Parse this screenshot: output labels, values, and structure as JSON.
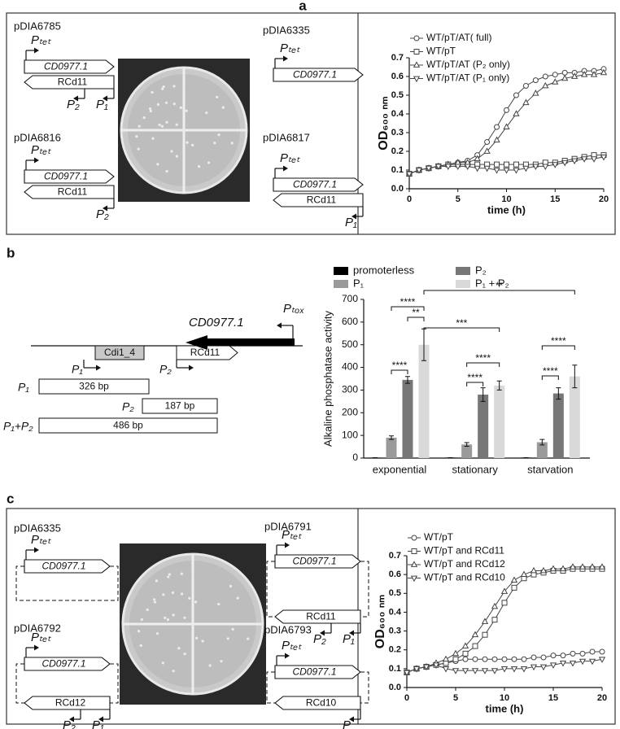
{
  "panel_labels": [
    "a",
    "b",
    "c"
  ],
  "diagram_a": [
    {
      "name": "pDIA6785",
      "ptet": "Pₜₑₜ",
      "toxin": "CD0977.1",
      "antitoxin": "RCd11",
      "promoters": [
        "P₂",
        "P₁"
      ]
    },
    {
      "name": "pDIA6335",
      "ptet": "Pₜₑₜ",
      "toxin": "CD0977.1"
    },
    {
      "name": "pDIA6816",
      "ptet": "Pₜₑₜ",
      "toxin": "CD0977.1",
      "antitoxin": "RCd11",
      "promoters": [
        "P₂"
      ]
    },
    {
      "name": "pDIA6817",
      "ptet": "Pₜₑₜ",
      "toxin": "CD0977.1",
      "antitoxin": "RCd11",
      "promoters": [
        "P₁"
      ]
    }
  ],
  "diagram_b": {
    "ptox": "Pₜₒₓ",
    "toxin": "CD0977.1",
    "cdi": "Cdi1_4",
    "antitoxin": "RCd11",
    "promoters": [
      "P₁",
      "P₂"
    ],
    "fragments": [
      {
        "name": "P₁",
        "size": "326 bp"
      },
      {
        "name": "P₂",
        "size": "187 bp"
      },
      {
        "name": "P₁+P₂",
        "size": "486 bp"
      }
    ]
  },
  "diagram_c": [
    {
      "name": "pDIA6335",
      "ptet": "Pₜₑₜ",
      "toxin": "CD0977.1"
    },
    {
      "name": "pDIA6791",
      "ptet": "Pₜₑₜ",
      "toxin": "CD0977.1",
      "antitoxin": "RCd11",
      "promoters": [
        "P₂",
        "P₁"
      ]
    },
    {
      "name": "pDIA6792",
      "ptet": "Pₜₑₜ",
      "toxin": "CD0977.1",
      "antitoxin": "RCd12",
      "promoters": [
        "P₂",
        "P₁"
      ]
    },
    {
      "name": "pDIA6793",
      "ptet": "Pₜₑₜ",
      "toxin": "CD0977.1",
      "antitoxin": "RCd10",
      "promoters": [
        "P"
      ]
    }
  ],
  "chart_data": [
    {
      "type": "line",
      "x_label": "time (h)",
      "y_label": "OD₆₀₀ ₙₘ",
      "x": [
        0,
        1,
        2,
        3,
        4,
        5,
        6,
        7,
        8,
        9,
        10,
        11,
        12,
        13,
        14,
        15,
        16,
        17,
        18,
        19,
        20
      ],
      "xlim": [
        0,
        20
      ],
      "xticks": [
        0,
        5,
        10,
        15,
        20
      ],
      "ylim": [
        0,
        0.7
      ],
      "yticks": [
        {
          "value": 0,
          "label": "0.0"
        },
        0.1,
        0.2,
        0.3,
        0.4,
        0.5,
        0.6,
        0.7
      ],
      "legend": "upper left",
      "series": [
        {
          "name": "WT/pT/AT( full)",
          "marker": "circle",
          "color": "#444",
          "values": [
            0.08,
            0.1,
            0.11,
            0.12,
            0.13,
            0.14,
            0.15,
            0.18,
            0.25,
            0.33,
            0.42,
            0.5,
            0.55,
            0.58,
            0.6,
            0.61,
            0.62,
            0.62,
            0.63,
            0.63,
            0.64
          ]
        },
        {
          "name": "WT/pT",
          "marker": "square",
          "color": "#444",
          "values": [
            0.08,
            0.1,
            0.11,
            0.12,
            0.13,
            0.13,
            0.13,
            0.13,
            0.13,
            0.13,
            0.13,
            0.13,
            0.13,
            0.13,
            0.14,
            0.14,
            0.15,
            0.16,
            0.17,
            0.18,
            0.18
          ]
        },
        {
          "name": "WT/pT/AT (P₂ only)",
          "marker": "triangle-up",
          "color": "#444",
          "values": [
            0.08,
            0.1,
            0.11,
            0.12,
            0.13,
            0.14,
            0.14,
            0.16,
            0.2,
            0.26,
            0.33,
            0.4,
            0.46,
            0.51,
            0.55,
            0.57,
            0.59,
            0.6,
            0.61,
            0.61,
            0.62
          ]
        },
        {
          "name": "WT/pT/AT (P₁ only)",
          "marker": "triangle-down",
          "color": "#444",
          "values": [
            0.08,
            0.1,
            0.11,
            0.12,
            0.12,
            0.12,
            0.12,
            0.11,
            0.11,
            0.1,
            0.1,
            0.1,
            0.11,
            0.12,
            0.12,
            0.13,
            0.14,
            0.15,
            0.16,
            0.16,
            0.17
          ]
        }
      ]
    },
    {
      "type": "bar",
      "y_label": "Alkaline phosphatase activity",
      "categories": [
        "exponential",
        "stationary",
        "starvation"
      ],
      "ylim": [
        0,
        700
      ],
      "yticks": [
        0,
        100,
        200,
        300,
        400,
        500,
        600,
        700
      ],
      "legend": "top",
      "series": [
        {
          "name": "promoterless",
          "color": "#000000",
          "values": [
            2,
            2,
            2
          ],
          "errors": [
            0,
            0,
            0
          ]
        },
        {
          "name": "P₁",
          "color": "#9a9a9a",
          "values": [
            90,
            60,
            70
          ],
          "errors": [
            8,
            8,
            12
          ]
        },
        {
          "name": "P₂",
          "color": "#777777",
          "values": [
            345,
            280,
            285
          ],
          "errors": [
            15,
            30,
            25
          ]
        },
        {
          "name": "P₁ + P₂",
          "color": "#d9d9d9",
          "values": [
            500,
            320,
            360
          ],
          "errors": [
            70,
            20,
            50
          ]
        }
      ],
      "annotations": [
        "****",
        "****",
        "**",
        "***",
        "**",
        "****",
        "****",
        "****",
        "****"
      ]
    },
    {
      "type": "line",
      "x_label": "time (h)",
      "y_label": "OD₆₀₀ ₙₘ",
      "x": [
        0,
        1,
        2,
        3,
        4,
        5,
        6,
        7,
        8,
        9,
        10,
        11,
        12,
        13,
        14,
        15,
        16,
        17,
        18,
        19,
        20
      ],
      "xlim": [
        0,
        20
      ],
      "xticks": [
        0,
        5,
        10,
        15,
        20
      ],
      "ylim": [
        0,
        0.7
      ],
      "yticks": [
        {
          "value": 0,
          "label": "0.0"
        },
        0.1,
        0.2,
        0.3,
        0.4,
        0.5,
        0.6,
        0.7
      ],
      "legend": "upper left",
      "series": [
        {
          "name": "WT/pT",
          "marker": "circle",
          "color": "#444",
          "values": [
            0.08,
            0.1,
            0.11,
            0.12,
            0.13,
            0.14,
            0.15,
            0.15,
            0.15,
            0.15,
            0.15,
            0.15,
            0.15,
            0.16,
            0.16,
            0.17,
            0.17,
            0.18,
            0.18,
            0.19,
            0.19
          ]
        },
        {
          "name": "WT/pT and RCd11",
          "marker": "square",
          "color": "#444",
          "values": [
            0.08,
            0.1,
            0.11,
            0.12,
            0.13,
            0.15,
            0.18,
            0.22,
            0.28,
            0.36,
            0.45,
            0.53,
            0.58,
            0.6,
            0.61,
            0.62,
            0.62,
            0.63,
            0.63,
            0.63,
            0.63
          ]
        },
        {
          "name": "WT/pT and RCd12",
          "marker": "triangle-up",
          "color": "#444",
          "values": [
            0.08,
            0.1,
            0.11,
            0.13,
            0.15,
            0.18,
            0.22,
            0.28,
            0.35,
            0.43,
            0.51,
            0.57,
            0.6,
            0.62,
            0.62,
            0.63,
            0.63,
            0.64,
            0.64,
            0.64,
            0.64
          ]
        },
        {
          "name": "WT/pT and RCd10",
          "marker": "triangle-down",
          "color": "#444",
          "values": [
            0.08,
            0.1,
            0.11,
            0.12,
            0.1,
            0.09,
            0.09,
            0.09,
            0.09,
            0.09,
            0.1,
            0.1,
            0.1,
            0.11,
            0.11,
            0.12,
            0.13,
            0.13,
            0.14,
            0.14,
            0.15
          ]
        }
      ]
    }
  ]
}
